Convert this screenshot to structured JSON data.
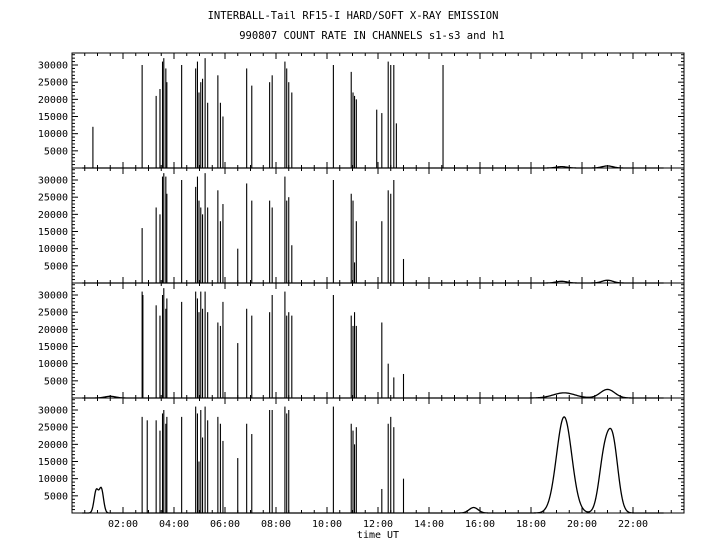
{
  "header": {
    "title_line1": "INTERBALL-Tail RF15-I HARD/SOFT X-RAY EMISSION",
    "title_line2": "990807  COUNT RATE IN CHANNELS s1-s3 and h1"
  },
  "colors": {
    "background": "#ffffff",
    "ink": "#000000"
  },
  "chart_data": {
    "type": "line",
    "xlabel": "time UT",
    "xlim_hours": [
      0.0,
      24.0
    ],
    "x_ticks": [
      {
        "hour": 2,
        "label": "02:00"
      },
      {
        "hour": 4,
        "label": "04:00"
      },
      {
        "hour": 6,
        "label": "06:00"
      },
      {
        "hour": 8,
        "label": "08:00"
      },
      {
        "hour": 10,
        "label": "10:00"
      },
      {
        "hour": 12,
        "label": "12:00"
      },
      {
        "hour": 14,
        "label": "14:00"
      },
      {
        "hour": 16,
        "label": "16:00"
      },
      {
        "hour": 18,
        "label": "18:00"
      },
      {
        "hour": 20,
        "label": "20:00"
      },
      {
        "hour": 22,
        "label": "22:00"
      }
    ],
    "ylim": [
      0,
      33500
    ],
    "y_ticks": [
      5000,
      10000,
      15000,
      20000,
      25000,
      30000
    ],
    "grid": false,
    "panels": [
      {
        "spikes": [
          [
            0.82,
            12000
          ],
          [
            2.75,
            30000
          ],
          [
            3.3,
            21000
          ],
          [
            3.45,
            23000
          ],
          [
            3.55,
            31000
          ],
          [
            3.6,
            32000
          ],
          [
            3.68,
            29000
          ],
          [
            3.72,
            25000
          ],
          [
            4.3,
            30000
          ],
          [
            4.85,
            29000
          ],
          [
            4.92,
            31000
          ],
          [
            4.98,
            22000
          ],
          [
            5.05,
            25000
          ],
          [
            5.12,
            26000
          ],
          [
            5.22,
            32000
          ],
          [
            5.32,
            19000
          ],
          [
            5.72,
            27000
          ],
          [
            5.82,
            19000
          ],
          [
            5.92,
            15000
          ],
          [
            6.85,
            29000
          ],
          [
            7.05,
            24000
          ],
          [
            7.75,
            25000
          ],
          [
            7.85,
            27000
          ],
          [
            8.35,
            31000
          ],
          [
            8.42,
            29000
          ],
          [
            8.5,
            25000
          ],
          [
            8.62,
            22000
          ],
          [
            10.25,
            30000
          ],
          [
            10.95,
            28000
          ],
          [
            11.02,
            22000
          ],
          [
            11.08,
            21000
          ],
          [
            11.15,
            20000
          ],
          [
            11.95,
            17000
          ],
          [
            12.15,
            16000
          ],
          [
            12.4,
            31000
          ],
          [
            12.5,
            30000
          ],
          [
            12.62,
            30000
          ],
          [
            12.72,
            13000
          ],
          [
            14.55,
            30000
          ]
        ],
        "baseline": [
          [
            19.2,
            400,
            0.3
          ],
          [
            21.0,
            600,
            0.3
          ]
        ]
      },
      {
        "spikes": [
          [
            2.75,
            16000
          ],
          [
            3.3,
            22000
          ],
          [
            3.45,
            20000
          ],
          [
            3.55,
            31000
          ],
          [
            3.6,
            32000
          ],
          [
            3.68,
            31000
          ],
          [
            3.72,
            26000
          ],
          [
            4.3,
            30000
          ],
          [
            4.85,
            28000
          ],
          [
            4.92,
            31000
          ],
          [
            4.98,
            24000
          ],
          [
            5.05,
            22000
          ],
          [
            5.12,
            20000
          ],
          [
            5.22,
            32000
          ],
          [
            5.32,
            22000
          ],
          [
            5.72,
            27000
          ],
          [
            5.82,
            18000
          ],
          [
            5.92,
            23000
          ],
          [
            6.5,
            10000
          ],
          [
            6.85,
            29000
          ],
          [
            7.05,
            24000
          ],
          [
            7.75,
            24000
          ],
          [
            7.85,
            22000
          ],
          [
            8.35,
            31000
          ],
          [
            8.42,
            24000
          ],
          [
            8.5,
            25000
          ],
          [
            8.62,
            11000
          ],
          [
            10.25,
            30000
          ],
          [
            10.95,
            26000
          ],
          [
            11.02,
            24000
          ],
          [
            11.08,
            6000
          ],
          [
            11.15,
            18000
          ],
          [
            12.15,
            18000
          ],
          [
            12.4,
            27000
          ],
          [
            12.5,
            26000
          ],
          [
            12.62,
            30000
          ],
          [
            13.0,
            7000
          ]
        ],
        "baseline": [
          [
            19.2,
            500,
            0.3
          ],
          [
            21.0,
            800,
            0.3
          ]
        ]
      },
      {
        "spikes": [
          [
            2.75,
            31000
          ],
          [
            2.78,
            30000
          ],
          [
            3.3,
            27000
          ],
          [
            3.45,
            24000
          ],
          [
            3.55,
            30000
          ],
          [
            3.6,
            32000
          ],
          [
            3.68,
            26000
          ],
          [
            3.72,
            29000
          ],
          [
            4.3,
            28000
          ],
          [
            4.85,
            31000
          ],
          [
            4.92,
            29000
          ],
          [
            4.98,
            25000
          ],
          [
            5.05,
            31000
          ],
          [
            5.12,
            26000
          ],
          [
            5.22,
            31000
          ],
          [
            5.32,
            25000
          ],
          [
            5.72,
            22000
          ],
          [
            5.82,
            21000
          ],
          [
            5.92,
            28000
          ],
          [
            6.5,
            16000
          ],
          [
            6.85,
            26000
          ],
          [
            7.05,
            24000
          ],
          [
            7.75,
            25000
          ],
          [
            7.85,
            30000
          ],
          [
            8.35,
            31000
          ],
          [
            8.42,
            24000
          ],
          [
            8.5,
            25000
          ],
          [
            8.62,
            24000
          ],
          [
            10.25,
            30000
          ],
          [
            10.95,
            24000
          ],
          [
            11.02,
            21000
          ],
          [
            11.08,
            25000
          ],
          [
            11.15,
            21000
          ],
          [
            12.15,
            22000
          ],
          [
            12.4,
            10000
          ],
          [
            12.62,
            6000
          ],
          [
            13.0,
            7000
          ]
        ],
        "baseline": [
          [
            1.5,
            500,
            0.3
          ],
          [
            19.3,
            1500,
            0.6
          ],
          [
            21.0,
            2500,
            0.4
          ]
        ]
      },
      {
        "spikes": [
          [
            2.75,
            28000
          ],
          [
            2.95,
            27000
          ],
          [
            3.3,
            27000
          ],
          [
            3.45,
            24000
          ],
          [
            3.55,
            29000
          ],
          [
            3.6,
            30000
          ],
          [
            3.68,
            26000
          ],
          [
            3.72,
            28000
          ],
          [
            4.3,
            28000
          ],
          [
            4.85,
            31000
          ],
          [
            4.92,
            29000
          ],
          [
            4.98,
            15000
          ],
          [
            5.05,
            30000
          ],
          [
            5.12,
            22000
          ],
          [
            5.22,
            31000
          ],
          [
            5.32,
            27000
          ],
          [
            5.72,
            28000
          ],
          [
            5.82,
            26000
          ],
          [
            5.92,
            21000
          ],
          [
            6.5,
            16000
          ],
          [
            6.85,
            26000
          ],
          [
            7.05,
            23000
          ],
          [
            7.75,
            30000
          ],
          [
            7.85,
            30000
          ],
          [
            8.35,
            31000
          ],
          [
            8.42,
            29000
          ],
          [
            8.5,
            30000
          ],
          [
            10.25,
            31000
          ],
          [
            10.95,
            26000
          ],
          [
            11.02,
            24000
          ],
          [
            11.08,
            20000
          ],
          [
            11.15,
            25000
          ],
          [
            12.15,
            7000
          ],
          [
            12.4,
            26000
          ],
          [
            12.5,
            28000
          ],
          [
            12.62,
            25000
          ],
          [
            13.0,
            10000
          ]
        ],
        "baseline": [
          [
            0.95,
            6500,
            0.12
          ],
          [
            1.15,
            7000,
            0.12
          ],
          [
            15.75,
            1600,
            0.25
          ],
          [
            19.3,
            28000,
            0.42
          ],
          [
            20.85,
            14000,
            0.28
          ],
          [
            21.2,
            20500,
            0.3
          ]
        ]
      }
    ]
  }
}
